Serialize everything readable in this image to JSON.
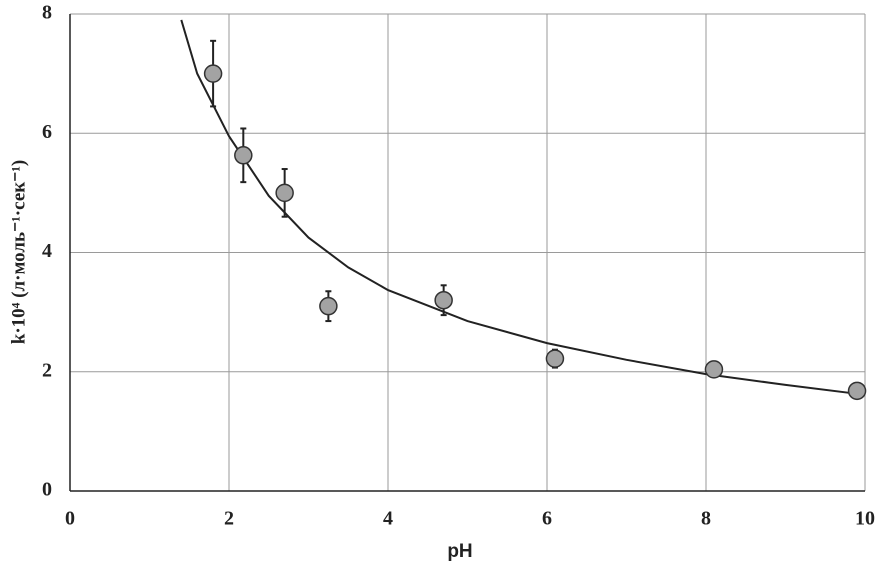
{
  "chart_data": {
    "type": "scatter",
    "x_label": "pH",
    "y_label": "k·10⁴ (л·моль⁻¹·сек⁻¹)",
    "xlim": [
      0,
      10
    ],
    "xticks": [
      0,
      2,
      4,
      6,
      8,
      10
    ],
    "ylim": [
      0,
      8
    ],
    "yticks": [
      0,
      2,
      4,
      6,
      8
    ],
    "grid": true,
    "marker_color": "#a3a3a3",
    "line_color": "#222222",
    "points": {
      "x": [
        1.8,
        2.18,
        2.7,
        3.25,
        4.7,
        6.1,
        8.1,
        9.9
      ],
      "values": [
        7.0,
        5.63,
        5.0,
        3.1,
        3.2,
        2.22,
        2.04,
        1.68
      ],
      "errors": [
        0.55,
        0.45,
        0.4,
        0.25,
        0.25,
        0.15,
        0.12,
        0.05
      ]
    },
    "fit": {
      "x": [
        1.4,
        1.6,
        2,
        2.5,
        3,
        3.5,
        4,
        5,
        6,
        7,
        8,
        9,
        9.9
      ],
      "values": [
        7.9,
        7.0,
        5.95,
        4.95,
        4.25,
        3.75,
        3.37,
        2.85,
        2.48,
        2.2,
        1.96,
        1.78,
        1.63
      ]
    }
  }
}
